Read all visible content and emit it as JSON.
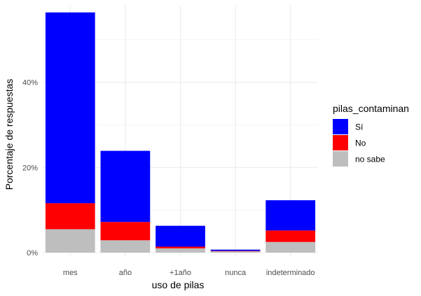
{
  "chart_data": {
    "type": "bar",
    "stacked": true,
    "categories": [
      "mes",
      "año",
      "+1año",
      "nunca",
      "indeterminado"
    ],
    "series": [
      {
        "name": "no sabe",
        "color": "#bebebe",
        "values": [
          5.5,
          2.9,
          1.0,
          0.3,
          2.5
        ]
      },
      {
        "name": "No",
        "color": "#ff0000",
        "values": [
          6.1,
          4.3,
          0.4,
          0.1,
          2.7
        ]
      },
      {
        "name": "Sí",
        "color": "#0000ff",
        "values": [
          44.8,
          16.7,
          4.9,
          0.3,
          7.1
        ]
      }
    ],
    "xlabel": "uso de pilas",
    "ylabel": "Porcentaje de respuestas",
    "ylim": [
      0,
      58
    ],
    "y_ticks": [
      {
        "value": 0,
        "label": "0%"
      },
      {
        "value": 20,
        "label": "20%"
      },
      {
        "value": 40,
        "label": "40%"
      }
    ],
    "grid": true,
    "legend": {
      "title": "pilas_contaminan",
      "position": "right",
      "entries": [
        {
          "label": "Sí",
          "color": "#0000ff"
        },
        {
          "label": "No",
          "color": "#ff0000"
        },
        {
          "label": "no sabe",
          "color": "#bebebe"
        }
      ]
    }
  }
}
